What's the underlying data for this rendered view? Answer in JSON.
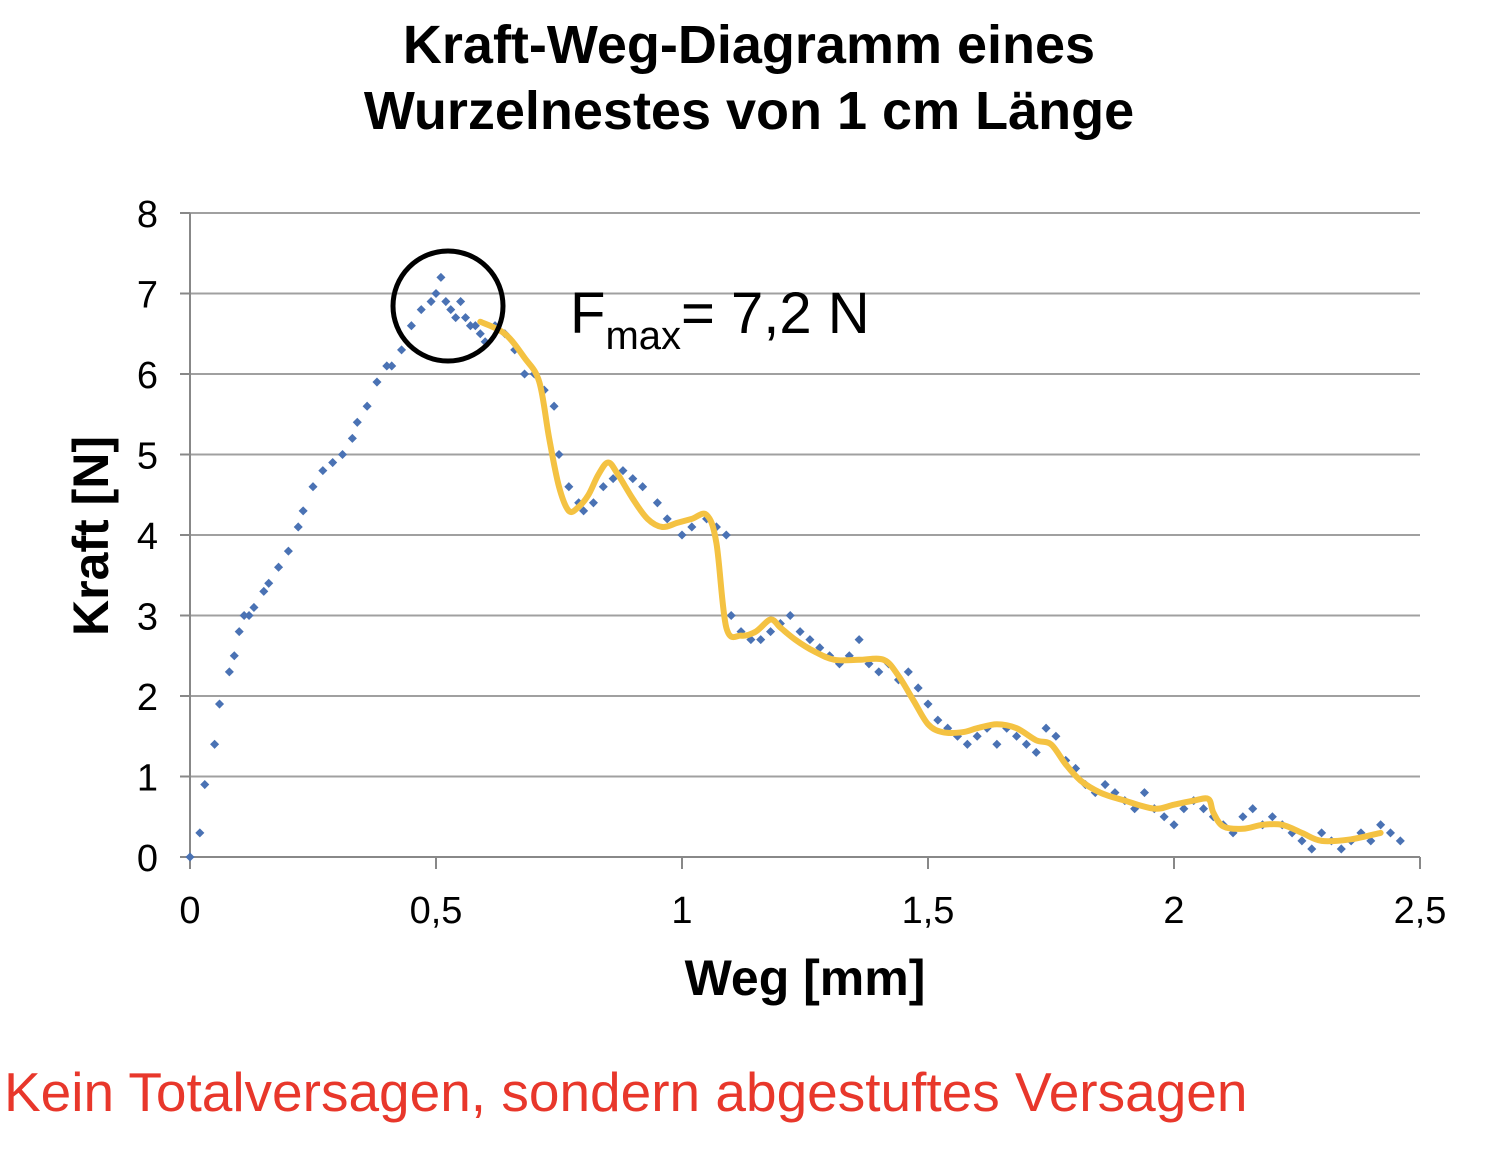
{
  "title_line1": "Kraft-Weg-Diagramm eines",
  "title_line2": "Wurzelnestes von 1 cm Länge",
  "caption": "Kein Totalversagen, sondern abgestuftes Versagen",
  "annotation": {
    "main": "F",
    "sub": "max",
    "rest": "= 7,2 N"
  },
  "colors": {
    "points": "#4a72b4",
    "fit": "#f4c242",
    "caption": "#e8372b",
    "grid": "#a0a0a0"
  },
  "chart_data": {
    "type": "scatter",
    "title": "Kraft-Weg-Diagramm eines Wurzelnestes von 1 cm Länge",
    "xlabel": "Weg [mm]",
    "ylabel": "Kraft [N]",
    "xlim": [
      0,
      2.5
    ],
    "ylim": [
      0,
      8
    ],
    "x_ticks": [
      "0",
      "0,5",
      "1",
      "1,5",
      "2",
      "2,5"
    ],
    "y_ticks": [
      "0",
      "1",
      "2",
      "3",
      "4",
      "5",
      "6",
      "7",
      "8"
    ],
    "grid": "horizontal",
    "series": [
      {
        "kind": "points",
        "x": [
          0,
          0.02,
          0.03,
          0.05,
          0.06,
          0.08,
          0.09,
          0.1,
          0.11,
          0.12,
          0.13,
          0.15,
          0.16,
          0.18,
          0.2,
          0.22,
          0.23,
          0.25,
          0.27,
          0.29,
          0.31,
          0.33,
          0.34,
          0.36,
          0.38,
          0.4,
          0.41,
          0.43,
          0.45,
          0.47,
          0.49,
          0.5,
          0.51,
          0.52,
          0.53,
          0.54,
          0.55,
          0.56,
          0.57,
          0.58,
          0.59,
          0.6,
          0.62,
          0.64,
          0.66,
          0.68,
          0.7,
          0.72,
          0.74,
          0.75,
          0.77,
          0.79,
          0.8,
          0.82,
          0.84,
          0.86,
          0.88,
          0.9,
          0.92,
          0.95,
          0.97,
          1.0,
          1.02,
          1.05,
          1.07,
          1.09,
          1.1,
          1.12,
          1.14,
          1.16,
          1.18,
          1.2,
          1.22,
          1.24,
          1.26,
          1.28,
          1.3,
          1.32,
          1.34,
          1.36,
          1.38,
          1.4,
          1.42,
          1.44,
          1.46,
          1.48,
          1.5,
          1.52,
          1.54,
          1.56,
          1.58,
          1.6,
          1.62,
          1.64,
          1.66,
          1.68,
          1.7,
          1.72,
          1.74,
          1.76,
          1.78,
          1.8,
          1.82,
          1.84,
          1.86,
          1.88,
          1.9,
          1.92,
          1.94,
          1.96,
          1.98,
          2.0,
          2.02,
          2.04,
          2.06,
          2.08,
          2.1,
          2.12,
          2.14,
          2.16,
          2.18,
          2.2,
          2.22,
          2.24,
          2.26,
          2.28,
          2.3,
          2.32,
          2.34,
          2.36,
          2.38,
          2.4,
          2.42,
          2.44,
          2.46
        ],
        "y": [
          0,
          0.3,
          0.9,
          1.4,
          1.9,
          2.3,
          2.5,
          2.8,
          3.0,
          3.0,
          3.1,
          3.3,
          3.4,
          3.6,
          3.8,
          4.1,
          4.3,
          4.6,
          4.8,
          4.9,
          5.0,
          5.2,
          5.4,
          5.6,
          5.9,
          6.1,
          6.1,
          6.3,
          6.6,
          6.8,
          6.9,
          7.0,
          7.2,
          6.9,
          6.8,
          6.7,
          6.9,
          6.7,
          6.6,
          6.6,
          6.5,
          6.4,
          6.6,
          6.5,
          6.3,
          6.0,
          6.0,
          5.8,
          5.6,
          5.0,
          4.6,
          4.4,
          4.3,
          4.4,
          4.6,
          4.7,
          4.8,
          4.7,
          4.6,
          4.4,
          4.2,
          4.0,
          4.1,
          4.2,
          4.1,
          4.0,
          3.0,
          2.8,
          2.7,
          2.7,
          2.8,
          2.9,
          3.0,
          2.8,
          2.7,
          2.6,
          2.5,
          2.4,
          2.5,
          2.7,
          2.4,
          2.3,
          2.4,
          2.2,
          2.3,
          2.1,
          1.9,
          1.7,
          1.6,
          1.5,
          1.4,
          1.5,
          1.6,
          1.4,
          1.6,
          1.5,
          1.4,
          1.3,
          1.6,
          1.5,
          1.2,
          1.1,
          0.9,
          0.8,
          0.9,
          0.8,
          0.7,
          0.6,
          0.8,
          0.6,
          0.5,
          0.4,
          0.6,
          0.7,
          0.6,
          0.5,
          0.4,
          0.3,
          0.5,
          0.6,
          0.4,
          0.5,
          0.4,
          0.3,
          0.2,
          0.1,
          0.3,
          0.2,
          0.1,
          0.2,
          0.3,
          0.2,
          0.4,
          0.3,
          0.2
        ]
      },
      {
        "kind": "line",
        "x": [
          0.59,
          0.64,
          0.68,
          0.71,
          0.73,
          0.75,
          0.77,
          0.79,
          0.81,
          0.83,
          0.85,
          0.87,
          0.9,
          0.93,
          0.96,
          0.99,
          1.02,
          1.05,
          1.07,
          1.09,
          1.12,
          1.15,
          1.18,
          1.2,
          1.23,
          1.27,
          1.31,
          1.36,
          1.41,
          1.44,
          1.47,
          1.5,
          1.53,
          1.57,
          1.6,
          1.64,
          1.68,
          1.72,
          1.75,
          1.78,
          1.81,
          1.85,
          1.9,
          1.96,
          2.0,
          2.04,
          2.07,
          2.08,
          2.1,
          2.14,
          2.18,
          2.22,
          2.26,
          2.3,
          2.36,
          2.42
        ],
        "y": [
          6.65,
          6.5,
          6.2,
          5.9,
          5.2,
          4.6,
          4.3,
          4.35,
          4.5,
          4.75,
          4.9,
          4.75,
          4.45,
          4.2,
          4.1,
          4.15,
          4.2,
          4.25,
          3.9,
          2.85,
          2.75,
          2.8,
          2.95,
          2.85,
          2.7,
          2.55,
          2.45,
          2.45,
          2.45,
          2.25,
          1.95,
          1.65,
          1.55,
          1.55,
          1.6,
          1.65,
          1.6,
          1.45,
          1.4,
          1.15,
          0.95,
          0.8,
          0.7,
          0.6,
          0.65,
          0.7,
          0.72,
          0.55,
          0.38,
          0.35,
          0.4,
          0.4,
          0.3,
          0.2,
          0.22,
          0.3
        ]
      }
    ]
  }
}
